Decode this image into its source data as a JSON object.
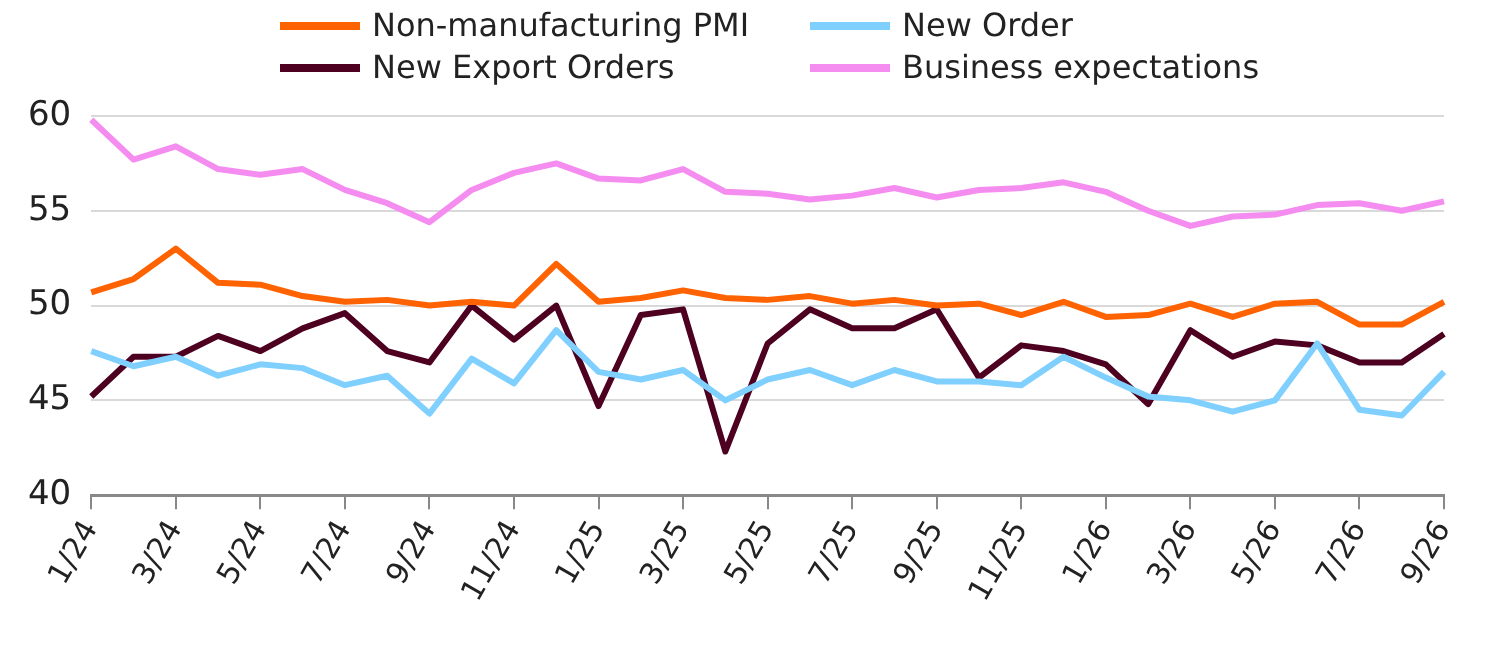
{
  "chart_data": {
    "type": "line",
    "categories": [
      "1/24",
      null,
      "3/24",
      null,
      "5/24",
      null,
      "7/24",
      null,
      "9/24",
      null,
      "11/24",
      null,
      "1/25",
      null,
      "3/25",
      null,
      "5/25",
      null,
      "7/25",
      null,
      "9/25",
      null,
      "11/25",
      null,
      "1/26",
      null,
      "3/26",
      null,
      "5/26",
      null,
      "7/26",
      null,
      "9/26"
    ],
    "series": [
      {
        "name": "Non-manufacturing PMI",
        "color": "#ff6200",
        "values": [
          50.7,
          51.4,
          53.0,
          51.2,
          51.1,
          50.5,
          50.2,
          50.3,
          50.0,
          50.2,
          50.0,
          52.2,
          50.2,
          50.4,
          50.8,
          50.4,
          50.3,
          50.5,
          50.1,
          50.3,
          50.0,
          50.1,
          49.5,
          50.2,
          49.4,
          49.5,
          50.1,
          49.4,
          50.1,
          50.2,
          49.0,
          49.0,
          50.2
        ]
      },
      {
        "name": "New Order",
        "color": "#7fcfff",
        "values": [
          47.6,
          46.8,
          47.3,
          46.3,
          46.9,
          46.7,
          45.8,
          46.3,
          44.3,
          47.2,
          45.9,
          48.7,
          46.5,
          46.1,
          46.6,
          45.0,
          46.1,
          46.6,
          45.8,
          46.6,
          46.0,
          46.0,
          45.8,
          47.3,
          46.2,
          45.2,
          45.0,
          44.4,
          45.0,
          48.0,
          44.5,
          44.2,
          46.5
        ]
      },
      {
        "name": "New Export Orders",
        "color": "#4d0020",
        "values": [
          45.2,
          47.3,
          47.3,
          48.4,
          47.6,
          48.8,
          49.6,
          47.6,
          47.0,
          50.0,
          48.2,
          50.0,
          44.7,
          49.5,
          49.8,
          42.3,
          48.0,
          49.8,
          48.8,
          48.8,
          49.8,
          46.2,
          47.9,
          47.6,
          46.9,
          44.8,
          48.7,
          47.3,
          48.1,
          47.9,
          47.0,
          47.0,
          48.5
        ]
      },
      {
        "name": "Business expectations",
        "color": "#f58cf0",
        "values": [
          59.8,
          57.7,
          58.4,
          57.2,
          56.9,
          57.2,
          56.1,
          55.4,
          54.4,
          56.1,
          57.0,
          57.5,
          56.7,
          56.6,
          57.2,
          56.0,
          55.9,
          55.6,
          55.8,
          56.2,
          55.7,
          56.1,
          56.2,
          56.5,
          56.0,
          55.0,
          54.2,
          54.7,
          54.8,
          55.3,
          55.4,
          55.0,
          55.5
        ]
      }
    ],
    "ylim": [
      40,
      60
    ],
    "yticks": [
      40,
      45,
      50,
      55,
      60
    ],
    "grid": "y",
    "legend": "top",
    "marker": "none",
    "line_style": "solid"
  }
}
